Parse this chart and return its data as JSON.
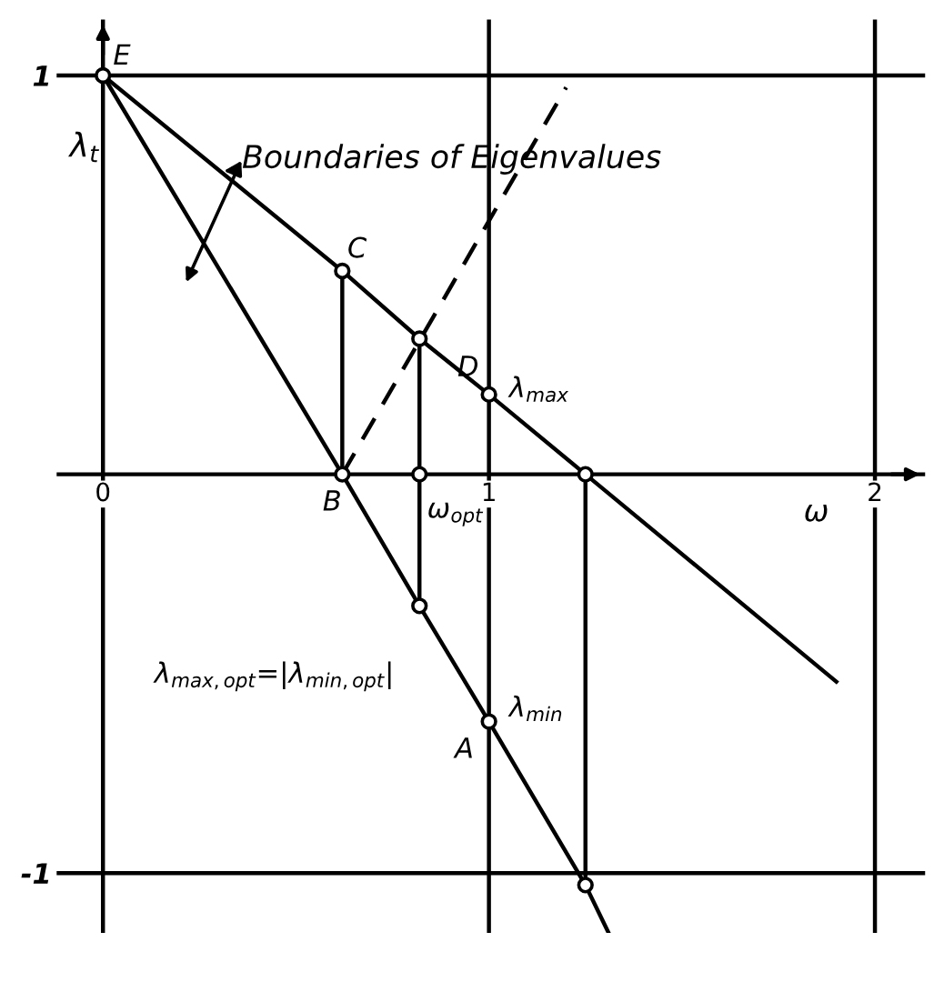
{
  "chart_data": {
    "type": "line",
    "xlabel": "ω",
    "ylabel": "λ$_{t}$",
    "xlim": [
      -0.12,
      2.13
    ],
    "ylim": [
      -1.15,
      1.14
    ],
    "xticks": [
      0,
      1,
      2
    ],
    "yticks": [
      -1,
      {
        "value": 0,
        "label": null
      },
      1
    ],
    "grid": true,
    "line_style": "solid",
    "marker": "none",
    "series": [
      {
        "color": "#000000",
        "x": [
          0,
          0.62,
          0.82,
          1.0,
          1.25,
          1.9
        ],
        "values": [
          1,
          0.51,
          0.34,
          0.2,
          0,
          -0.52
        ]
      },
      {
        "color": "#000000",
        "x": [
          0,
          0.62,
          0.82,
          1.0,
          1.25,
          1.31
        ],
        "values": [
          1,
          0,
          -0.33,
          -0.62,
          -1.03,
          -1.15
        ]
      },
      {
        "color": "#000000",
        "line_style": "dashed",
        "x": [
          0.62,
          1.2
        ],
        "values": [
          0,
          0.97
        ]
      },
      {
        "color": "#000000",
        "x": [
          0.62,
          0.62
        ],
        "values": [
          0,
          0.51
        ]
      },
      {
        "color": "#000000",
        "x": [
          0.82,
          0.82
        ],
        "values": [
          -0.33,
          0.34
        ]
      },
      {
        "color": "#000000",
        "x": [
          1.25,
          1.25
        ],
        "values": [
          0,
          -1.03
        ]
      },
      {
        "color": "#000000",
        "type": "scatter",
        "marker": "circle",
        "x": [
          0,
          0.62,
          0.82,
          1.0,
          1.25,
          0.62,
          0.82,
          0.82,
          1.0,
          1.25
        ],
        "values": [
          1,
          0.51,
          0.34,
          0.2,
          0,
          0,
          0,
          -0.33,
          -0.62,
          -1.03
        ]
      }
    ],
    "annotations": [
      {
        "text": "E",
        "x": 0,
        "y": 1
      },
      {
        "text": "C",
        "x": 0.62,
        "y": 0.51
      },
      {
        "text": "D",
        "x": 1.0,
        "y": 0.2
      },
      {
        "text": "B",
        "x": 0.62,
        "y": 0
      },
      {
        "text": "A",
        "x": 1.0,
        "y": -0.62
      },
      {
        "text": "λ$_{max}$",
        "x": 1.0,
        "y": 0.2
      },
      {
        "text": "λ$_{min}$",
        "x": 1.0,
        "y": -0.62
      },
      {
        "text": "ω$_{opt}$",
        "x": 0.82,
        "y": 0
      },
      {
        "text": "λ$_{max,opt}$=|λ$_{min,opt}$|",
        "x": 0.82,
        "y": -0.33
      },
      "Boundaries of Eigenvalues"
    ]
  }
}
